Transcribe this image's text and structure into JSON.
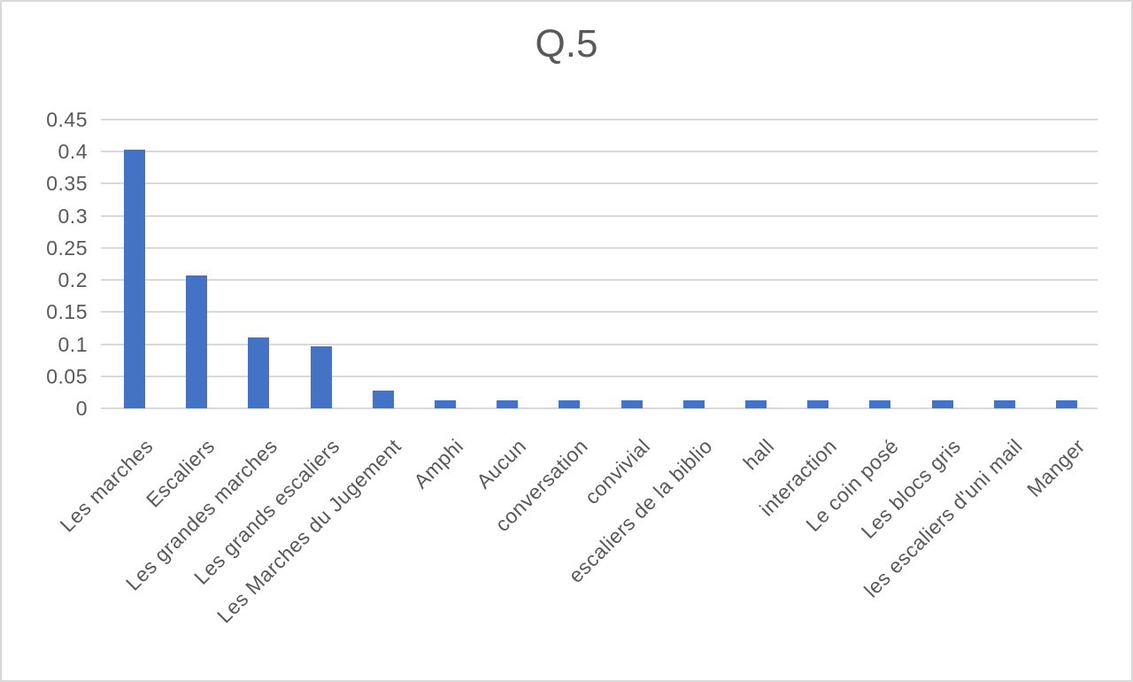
{
  "chart": {
    "title": "Q.5",
    "colors": {
      "bar": "#4472C4",
      "gridline": "#D9D9D9",
      "text": "#595959",
      "border": "#D9D9D9"
    }
  },
  "chart_data": {
    "type": "bar",
    "title": "Q.5",
    "categories": [
      "Les marches",
      "Escaliers",
      "Les grandes marches",
      "Les grands escaliers",
      "Les Marches du Jugement",
      "Amphi",
      "Aucun",
      "conversation",
      "convivial",
      "escaliers de la biblio",
      "hall",
      "interaction",
      "Le coin posé",
      "Les blocs gris",
      "les escaliers d'uni mail",
      "Manger"
    ],
    "values": [
      0.403,
      0.207,
      0.11,
      0.096,
      0.027,
      0.013,
      0.013,
      0.013,
      0.013,
      0.013,
      0.013,
      0.013,
      0.013,
      0.013,
      0.013,
      0.013
    ],
    "xlabel": "",
    "ylabel": "",
    "ylim": [
      0,
      0.45
    ],
    "yticks": [
      0,
      0.05,
      0.1,
      0.15,
      0.2,
      0.25,
      0.3,
      0.35,
      0.4,
      0.45
    ],
    "ytick_labels": [
      "0",
      "0.05",
      "0.1",
      "0.15",
      "0.2",
      "0.25",
      "0.3",
      "0.35",
      "0.4",
      "0.45"
    ],
    "grid": true,
    "legend": "none",
    "x_label_rotation_deg": 45
  }
}
